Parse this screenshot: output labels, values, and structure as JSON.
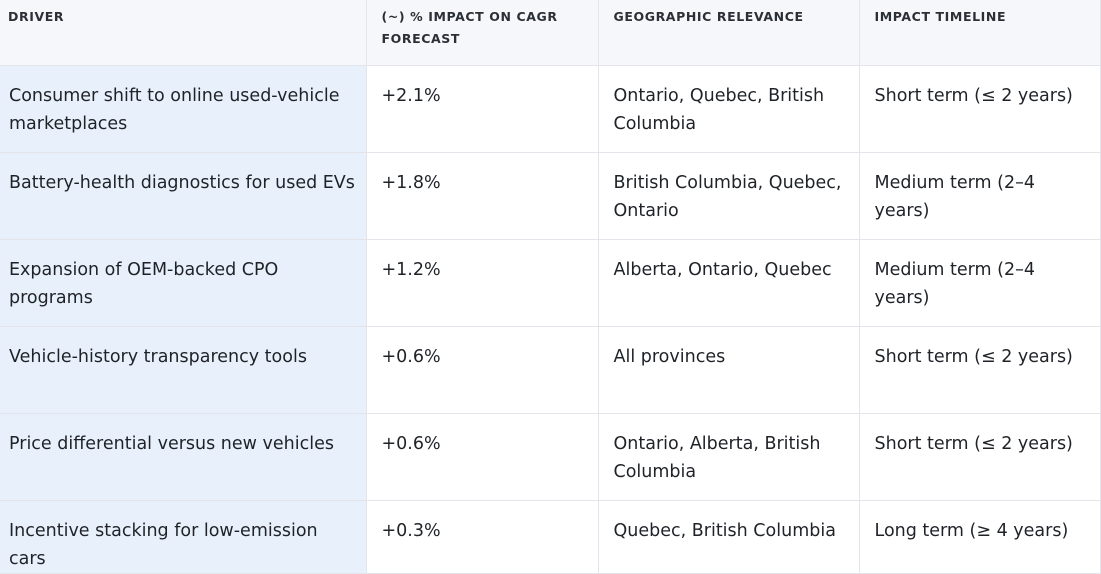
{
  "table": {
    "headers": {
      "driver": "DRIVER",
      "impact_line1": "(~) % IMPACT ON CAGR",
      "impact_line2": "FORECAST",
      "geo": "GEOGRAPHIC RELEVANCE",
      "timeline": "IMPACT TIMELINE"
    },
    "rows": [
      {
        "driver": "Consumer shift to online used-vehicle marketplaces",
        "impact": "+2.1%",
        "geo": "Ontario, Quebec, British Columbia",
        "timeline": "Short term (≤ 2 years)"
      },
      {
        "driver": "Battery-health diagnostics for used EVs",
        "impact": "+1.8%",
        "geo": "British Columbia, Quebec, Ontario",
        "timeline": "Medium term (2–4 years)"
      },
      {
        "driver": "Expansion of OEM-backed CPO programs",
        "impact": "+1.2%",
        "geo": "Alberta, Ontario, Quebec",
        "timeline": "Medium term (2–4 years)"
      },
      {
        "driver": "Vehicle-history transparency tools",
        "impact": "+0.6%",
        "geo": "All provinces",
        "timeline": "Short term (≤ 2 years)"
      },
      {
        "driver": "Price differential versus new vehicles",
        "impact": "+0.6%",
        "geo": "Ontario, Alberta, British Columbia",
        "timeline": "Short term (≤ 2 years)"
      },
      {
        "driver": "Incentive stacking for low-emission cars",
        "impact": "+0.3%",
        "geo": "Quebec, British Columbia",
        "timeline": "Long term (≥ 4 years)"
      }
    ]
  }
}
